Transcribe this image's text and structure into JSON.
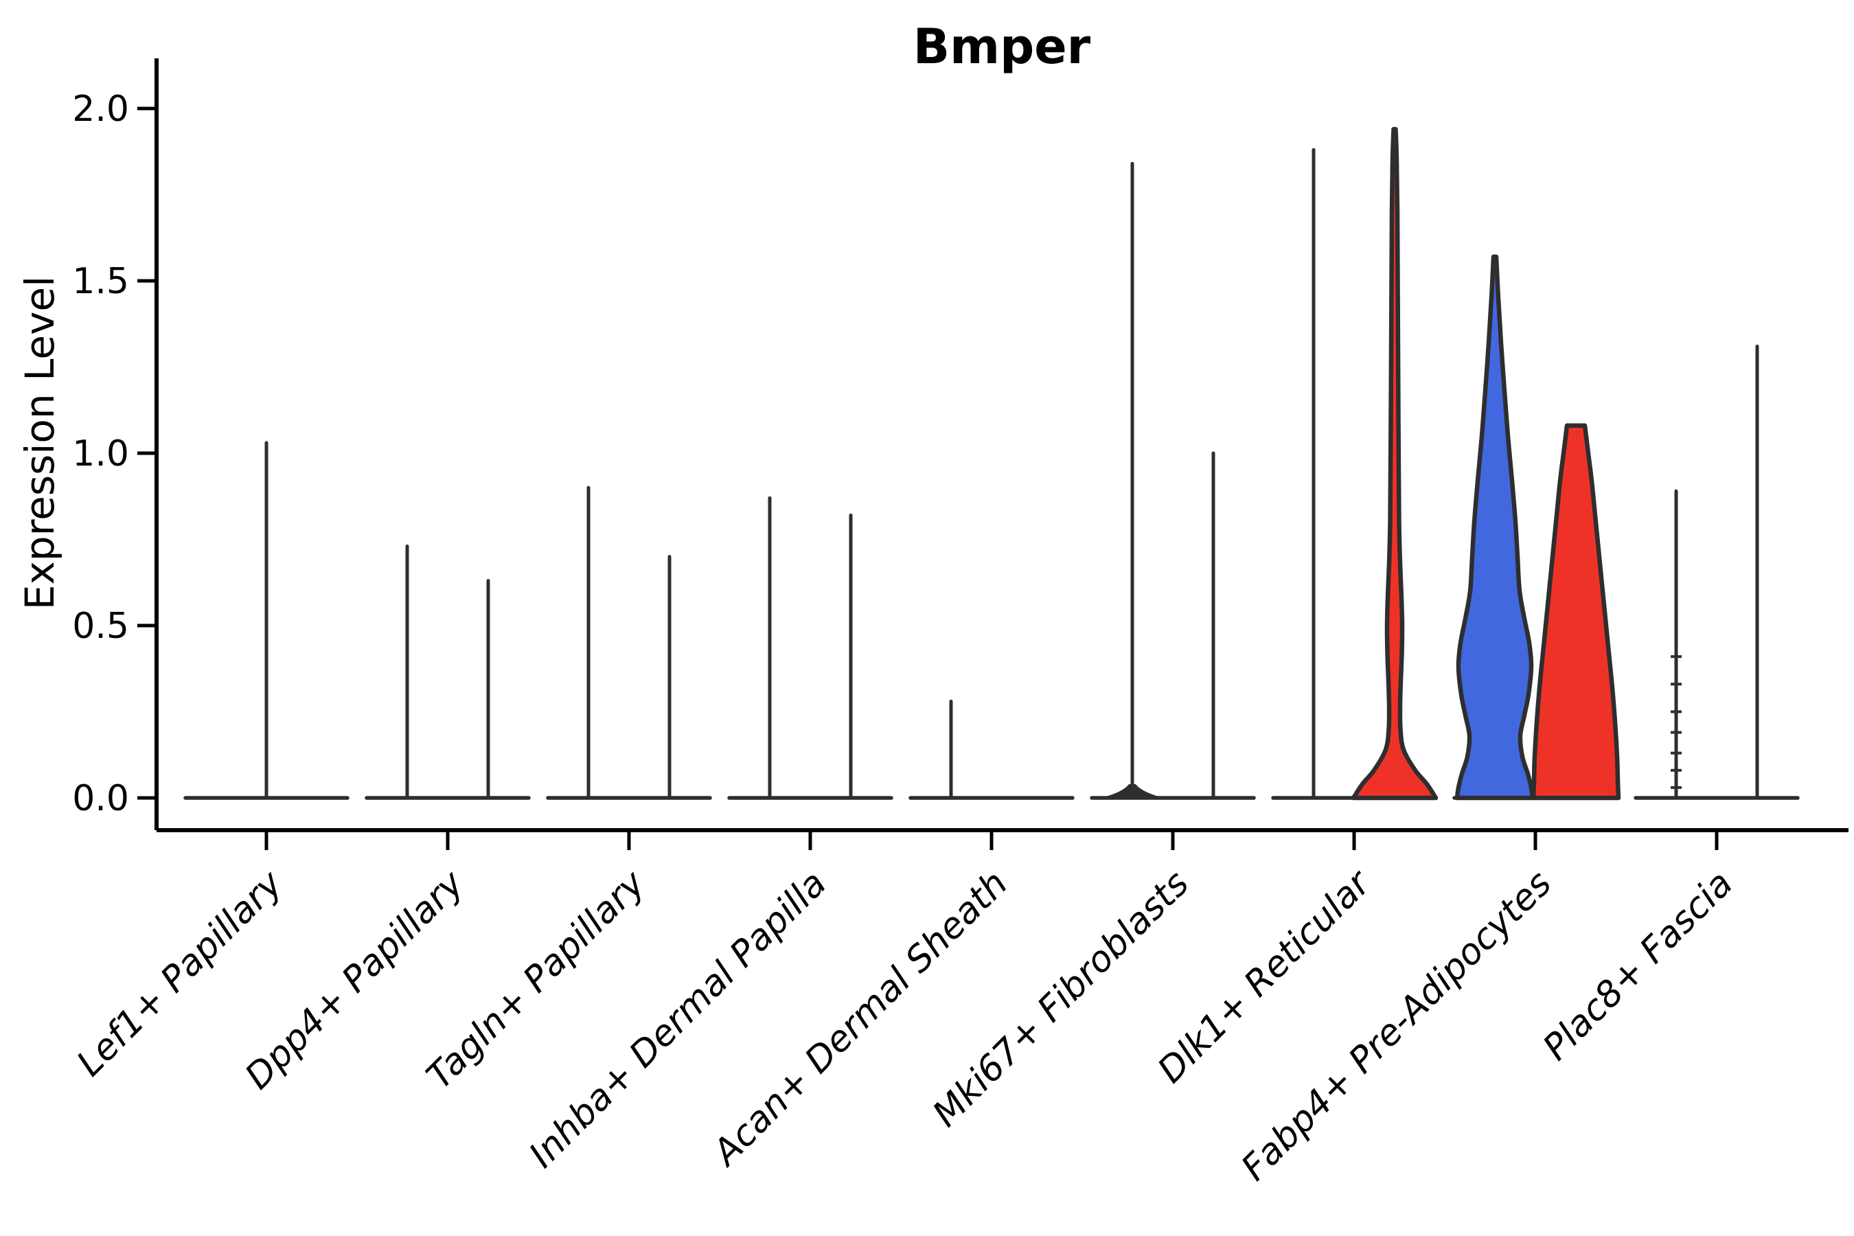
{
  "chart_data": {
    "type": "violin",
    "title": "Bmper",
    "ylabel": "Expression Level",
    "xlabel": "",
    "ylim": [
      0.0,
      2.14
    ],
    "yticks": [
      {
        "value": 0.0,
        "label": "0.0"
      },
      {
        "value": 0.5,
        "label": "0.5"
      },
      {
        "value": 1.0,
        "label": "1.0"
      },
      {
        "value": 1.5,
        "label": "1.5"
      },
      {
        "value": 2.0,
        "label": "2.0"
      }
    ],
    "categories": [
      "Lef1+ Papillary",
      "Dpp4+ Papillary",
      "Tagln+ Papillary",
      "Inhba+ Dermal Papilla",
      "Acan+ Dermal Sheath",
      "Mki67+ Fibroblasts",
      "Dlk1+ Reticular",
      "Fabp4+ Pre-Adipocytes",
      "Plac8+ Fascia"
    ],
    "legend": "none",
    "grid": false,
    "colors": {
      "group_blue": "#4268DF",
      "group_red": "#EF3228",
      "violin_line": "#2E2E2E",
      "axis": "#000000",
      "text": "#000000"
    },
    "violins": [
      {
        "category": 0,
        "pos": "center",
        "kind": "spike",
        "max": 1.03,
        "color_key": "violin_line"
      },
      {
        "category": 1,
        "pos": "left",
        "kind": "spike",
        "max": 0.73,
        "color_key": "violin_line"
      },
      {
        "category": 1,
        "pos": "right",
        "kind": "spike",
        "max": 0.63,
        "color_key": "violin_line"
      },
      {
        "category": 2,
        "pos": "left",
        "kind": "spike",
        "max": 0.9,
        "color_key": "violin_line"
      },
      {
        "category": 2,
        "pos": "right",
        "kind": "spike",
        "max": 0.7,
        "color_key": "violin_line"
      },
      {
        "category": 3,
        "pos": "left",
        "kind": "spike",
        "max": 0.87,
        "color_key": "violin_line"
      },
      {
        "category": 3,
        "pos": "right",
        "kind": "spike",
        "max": 0.82,
        "color_key": "violin_line"
      },
      {
        "category": 4,
        "pos": "left",
        "kind": "spike",
        "max": 0.28,
        "color_key": "violin_line"
      },
      {
        "category": 5,
        "pos": "left",
        "kind": "spike",
        "max": 1.84,
        "color_key": "violin_line",
        "base_mound": true
      },
      {
        "category": 5,
        "pos": "right",
        "kind": "spike",
        "max": 1.0,
        "color_key": "violin_line"
      },
      {
        "category": 6,
        "pos": "left",
        "kind": "spike",
        "max": 1.88,
        "color_key": "violin_line"
      },
      {
        "category": 6,
        "pos": "right",
        "kind": "violin",
        "max": 1.94,
        "color_key": "group_red",
        "name": "dlk1-red-violin",
        "profile": [
          [
            1.94,
            1.5
          ],
          [
            1.85,
            3
          ],
          [
            1.7,
            4
          ],
          [
            1.5,
            4.5
          ],
          [
            1.3,
            5
          ],
          [
            1.1,
            5.5
          ],
          [
            0.95,
            6
          ],
          [
            0.8,
            6.5
          ],
          [
            0.68,
            8
          ],
          [
            0.58,
            10
          ],
          [
            0.5,
            11
          ],
          [
            0.42,
            10.5
          ],
          [
            0.34,
            9
          ],
          [
            0.27,
            8
          ],
          [
            0.2,
            8.5
          ],
          [
            0.14,
            13
          ],
          [
            0.08,
            30
          ],
          [
            0.04,
            47
          ],
          [
            0.0,
            60
          ]
        ]
      },
      {
        "category": 7,
        "pos": "left",
        "kind": "violin",
        "max": 1.57,
        "color_key": "group_blue",
        "name": "fabp4-blue-violin",
        "profile": [
          [
            1.57,
            2
          ],
          [
            1.45,
            5
          ],
          [
            1.32,
            9
          ],
          [
            1.18,
            14
          ],
          [
            1.05,
            19
          ],
          [
            0.92,
            25
          ],
          [
            0.8,
            30
          ],
          [
            0.7,
            33
          ],
          [
            0.6,
            36
          ],
          [
            0.52,
            43
          ],
          [
            0.45,
            50
          ],
          [
            0.38,
            53
          ],
          [
            0.3,
            49
          ],
          [
            0.24,
            43
          ],
          [
            0.18,
            37
          ],
          [
            0.12,
            40
          ],
          [
            0.07,
            48
          ],
          [
            0.03,
            53
          ],
          [
            0.0,
            55
          ]
        ]
      },
      {
        "category": 7,
        "pos": "right",
        "kind": "violin",
        "max": 1.08,
        "color_key": "group_red",
        "name": "fabp4-red-violin",
        "profile": [
          [
            1.08,
            13
          ],
          [
            1.0,
            18
          ],
          [
            0.92,
            23
          ],
          [
            0.82,
            28
          ],
          [
            0.72,
            33
          ],
          [
            0.62,
            38
          ],
          [
            0.52,
            43
          ],
          [
            0.42,
            48
          ],
          [
            0.32,
            53
          ],
          [
            0.22,
            57
          ],
          [
            0.12,
            60
          ],
          [
            0.05,
            61
          ],
          [
            0.0,
            62
          ]
        ]
      },
      {
        "category": 8,
        "pos": "left",
        "kind": "spike",
        "max": 0.89,
        "color_key": "violin_line",
        "point_dashes": [
          0.41,
          0.33,
          0.25,
          0.19,
          0.13,
          0.08,
          0.03
        ]
      },
      {
        "category": 8,
        "pos": "right",
        "kind": "spike",
        "max": 1.31,
        "color_key": "violin_line"
      }
    ]
  }
}
